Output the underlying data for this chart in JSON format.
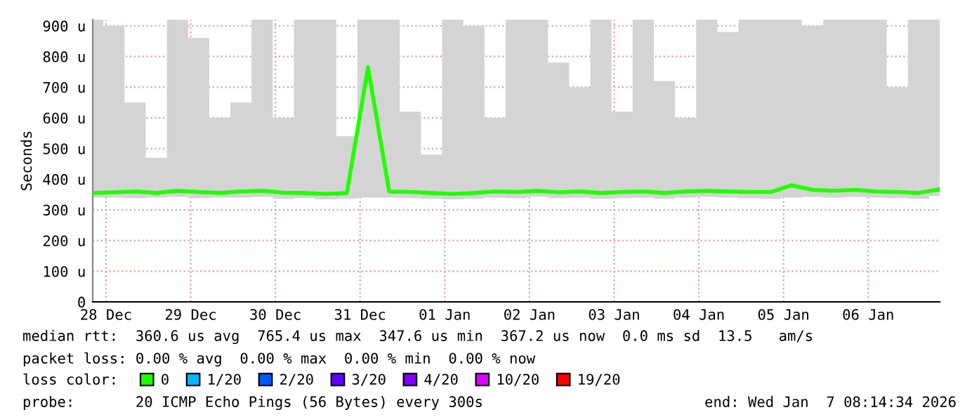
{
  "chart_data": {
    "type": "line",
    "ylabel": "Seconds",
    "legend_title": "loss color:",
    "x": [
      "2025-12-28T08:15",
      "2025-12-28T14:15",
      "2025-12-28T20:15",
      "2025-12-29T02:15",
      "2025-12-29T08:15",
      "2025-12-29T14:15",
      "2025-12-29T20:15",
      "2025-12-30T02:15",
      "2025-12-30T08:15",
      "2025-12-30T14:15",
      "2025-12-30T20:15",
      "2025-12-31T02:15",
      "2025-12-31T08:15",
      "2025-12-31T14:15",
      "2025-12-31T20:15",
      "2026-01-01T02:15",
      "2026-01-01T08:15",
      "2026-01-01T14:15",
      "2026-01-01T20:15",
      "2026-01-02T02:15",
      "2026-01-02T08:15",
      "2026-01-02T14:15",
      "2026-01-02T20:15",
      "2026-01-03T02:15",
      "2026-01-03T08:15",
      "2026-01-03T14:15",
      "2026-01-03T20:15",
      "2026-01-04T02:15",
      "2026-01-04T08:15",
      "2026-01-04T14:15",
      "2026-01-04T20:15",
      "2026-01-05T02:15",
      "2026-01-05T08:15",
      "2026-01-05T14:15",
      "2026-01-05T20:15",
      "2026-01-06T02:15",
      "2026-01-06T08:15",
      "2026-01-06T14:15",
      "2026-01-06T20:15",
      "2026-01-07T02:15",
      "2026-01-07T08:15"
    ],
    "series": [
      {
        "name": "0",
        "color": "#20ff00",
        "values": [
          355,
          357,
          360,
          355,
          362,
          358,
          355,
          360,
          362,
          356,
          355,
          352,
          355,
          765,
          360,
          358,
          355,
          352,
          355,
          360,
          358,
          362,
          357,
          360,
          355,
          358,
          360,
          355,
          360,
          362,
          360,
          358,
          358,
          380,
          365,
          362,
          365,
          360,
          358,
          355,
          367
        ],
        "lower": [
          340,
          340,
          338,
          340,
          342,
          338,
          340,
          340,
          342,
          336,
          338,
          334,
          336,
          340,
          340,
          338,
          336,
          334,
          336,
          340,
          338,
          342,
          338,
          340,
          336,
          338,
          340,
          336,
          340,
          342,
          340,
          338,
          336,
          340,
          342,
          340,
          342,
          340,
          338,
          336,
          345
        ],
        "upper": [
          920,
          900,
          650,
          470,
          920,
          860,
          600,
          650,
          920,
          600,
          920,
          920,
          540,
          920,
          920,
          620,
          480,
          920,
          900,
          600,
          920,
          920,
          780,
          700,
          920,
          620,
          920,
          720,
          600,
          920,
          880,
          920,
          920,
          920,
          900,
          920,
          920,
          920,
          700,
          920,
          920
        ]
      },
      {
        "name": "1/20",
        "color": "#00b8ff",
        "values": [
          null,
          null,
          null,
          null,
          null,
          null,
          null,
          null,
          null,
          null,
          null,
          null,
          null,
          null,
          null,
          null,
          null,
          null,
          null,
          null,
          null,
          null,
          null,
          null,
          null,
          null,
          null,
          null,
          null,
          null,
          null,
          null,
          null,
          null,
          null,
          null,
          null,
          null,
          null,
          null,
          null
        ]
      },
      {
        "name": "2/20",
        "color": "#0059ff",
        "values": [
          null,
          null,
          null,
          null,
          null,
          null,
          null,
          null,
          null,
          null,
          null,
          null,
          null,
          null,
          null,
          null,
          null,
          null,
          null,
          null,
          null,
          null,
          null,
          null,
          null,
          null,
          null,
          null,
          null,
          null,
          null,
          null,
          null,
          null,
          null,
          null,
          null,
          null,
          null,
          null,
          null
        ]
      },
      {
        "name": "3/20",
        "color": "#5e00ff",
        "values": [
          null,
          null,
          null,
          null,
          null,
          null,
          null,
          null,
          null,
          null,
          null,
          null,
          null,
          null,
          null,
          null,
          null,
          null,
          null,
          null,
          null,
          null,
          null,
          null,
          null,
          null,
          null,
          null,
          null,
          null,
          null,
          null,
          null,
          null,
          null,
          null,
          null,
          null,
          null,
          null,
          null
        ]
      },
      {
        "name": "4/20",
        "color": "#7e00ff",
        "values": [
          null,
          null,
          null,
          null,
          null,
          null,
          null,
          null,
          null,
          null,
          null,
          null,
          null,
          null,
          null,
          null,
          null,
          null,
          null,
          null,
          null,
          null,
          null,
          null,
          null,
          null,
          null,
          null,
          null,
          null,
          null,
          null,
          null,
          null,
          null,
          null,
          null,
          null,
          null,
          null,
          null
        ]
      },
      {
        "name": "10/20",
        "color": "#dd00ff",
        "values": [
          null,
          null,
          null,
          null,
          null,
          null,
          null,
          null,
          null,
          null,
          null,
          null,
          null,
          null,
          null,
          null,
          null,
          null,
          null,
          null,
          null,
          null,
          null,
          null,
          null,
          null,
          null,
          null,
          null,
          null,
          null,
          null,
          null,
          null,
          null,
          null,
          null,
          null,
          null,
          null,
          null
        ]
      },
      {
        "name": "19/20",
        "color": "#ff0000",
        "values": [
          null,
          null,
          null,
          null,
          null,
          null,
          null,
          null,
          null,
          null,
          null,
          null,
          null,
          null,
          null,
          null,
          null,
          null,
          null,
          null,
          null,
          null,
          null,
          null,
          null,
          null,
          null,
          null,
          null,
          null,
          null,
          null,
          null,
          null,
          null,
          null,
          null,
          null,
          null,
          null,
          null
        ]
      }
    ],
    "xlim": [
      "2025-12-28T08:14",
      "2026-01-07T08:15"
    ],
    "xticks": [
      {
        "value": "2025-12-28T12:00",
        "label": "28 Dec"
      },
      {
        "value": "2025-12-29T12:00",
        "label": "29 Dec"
      },
      {
        "value": "2025-12-30T12:00",
        "label": "30 Dec"
      },
      {
        "value": "2025-12-31T12:00",
        "label": "31 Dec"
      },
      {
        "value": "2026-01-01T12:00",
        "label": "01 Jan"
      },
      {
        "value": "2026-01-02T12:00",
        "label": "02 Jan"
      },
      {
        "value": "2026-01-03T12:00",
        "label": "03 Jan"
      },
      {
        "value": "2026-01-04T12:00",
        "label": "04 Jan"
      },
      {
        "value": "2026-01-05T12:00",
        "label": "05 Jan"
      },
      {
        "value": "2026-01-06T12:00",
        "label": "06 Jan"
      }
    ],
    "ylim": [
      0,
      920
    ],
    "yticks": [
      0,
      {
        "value": 100,
        "label": "100 u"
      },
      {
        "value": 200,
        "label": "200 u"
      },
      {
        "value": 300,
        "label": "300 u"
      },
      {
        "value": 400,
        "label": "400 u"
      },
      {
        "value": 500,
        "label": "500 u"
      },
      {
        "value": 600,
        "label": "600 u"
      },
      {
        "value": 700,
        "label": "700 u"
      },
      {
        "value": 800,
        "label": "800 u"
      },
      {
        "value": 900,
        "label": "900 u"
      }
    ],
    "grid": true,
    "legend": "bottom",
    "line_style": "solid",
    "marker": "none",
    "annotations": [
      "median rtt:  360.6 us avg  765.4 us max  347.6 us min  367.2 us now  0.0 ms sd  13.5   am/s",
      "packet loss: 0.00 % avg  0.00 % max  0.00 % min  0.00 % now",
      "probe:       20 ICMP Echo Pings (56 Bytes) every 300s",
      "end: Wed Jan  7 08:14:34 2026"
    ]
  }
}
